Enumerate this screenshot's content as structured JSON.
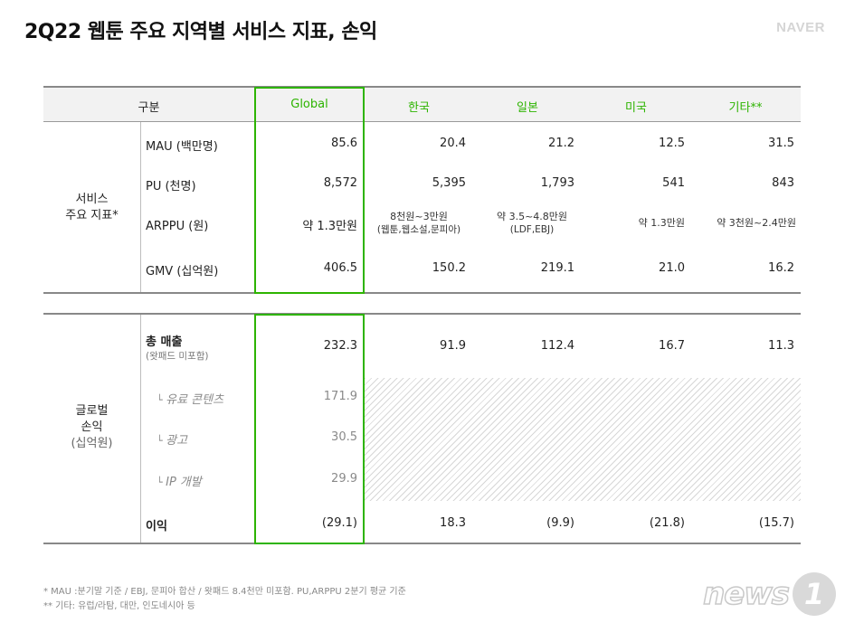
{
  "title": "2Q22 웹툰 주요 지역별 서비스 지표, 손익",
  "brand": "NAVER",
  "header": {
    "category": "구분",
    "regions": [
      "Global",
      "한국",
      "일본",
      "미국",
      "기타**"
    ]
  },
  "service": {
    "group_label": [
      "서비스",
      "주요 지표*"
    ],
    "rows": [
      {
        "label": "MAU (백만명)",
        "values": [
          "85.6",
          "20.4",
          "21.2",
          "12.5",
          "31.5"
        ]
      },
      {
        "label": "PU (천명)",
        "values": [
          "8,572",
          "5,395",
          "1,793",
          "541",
          "843"
        ]
      },
      {
        "label": "ARPPU (원)",
        "values": [
          "약 1.3만원",
          "8천원~3만원",
          "약 3.5~4.8만원",
          "약 1.3만원",
          "약 3천원~2.4만원"
        ],
        "notes": [
          "",
          "(웹툰,웹소설,문피아)",
          "(LDF,EBJ)",
          "",
          ""
        ]
      },
      {
        "label": "GMV (십억원)",
        "values": [
          "406.5",
          "150.2",
          "219.1",
          "21.0",
          "16.2"
        ]
      }
    ]
  },
  "pnl": {
    "group_label": [
      "글로벌",
      "손익",
      "(십억원)"
    ],
    "revenue": {
      "label": "총 매출",
      "note": "(왓패드 미포함)",
      "values": [
        "232.3",
        "91.9",
        "112.4",
        "16.7",
        "11.3"
      ]
    },
    "sub_rows": [
      {
        "label": "유료 콘텐츠",
        "value": "171.9"
      },
      {
        "label": "광고",
        "value": "30.5"
      },
      {
        "label": "IP 개발",
        "value": "29.9"
      }
    ],
    "profit": {
      "label": "이익",
      "values": [
        "(29.1)",
        "18.3",
        "(9.9)",
        "(21.8)",
        "(15.7)"
      ]
    }
  },
  "footnotes": [
    "* MAU :분기말 기준 / EBJ, 문피아 합산 / 왓패드 8.4천만 미포함. PU,ARPPU 2분기 평균 기준",
    "** 기타: 유럽/라탐, 대만, 인도네시아 등"
  ],
  "watermark": {
    "text": "news",
    "number": "1"
  },
  "colors": {
    "accent": "#2db400",
    "header_bg": "#f2f2f2",
    "hatch": "#d7d7d7"
  }
}
